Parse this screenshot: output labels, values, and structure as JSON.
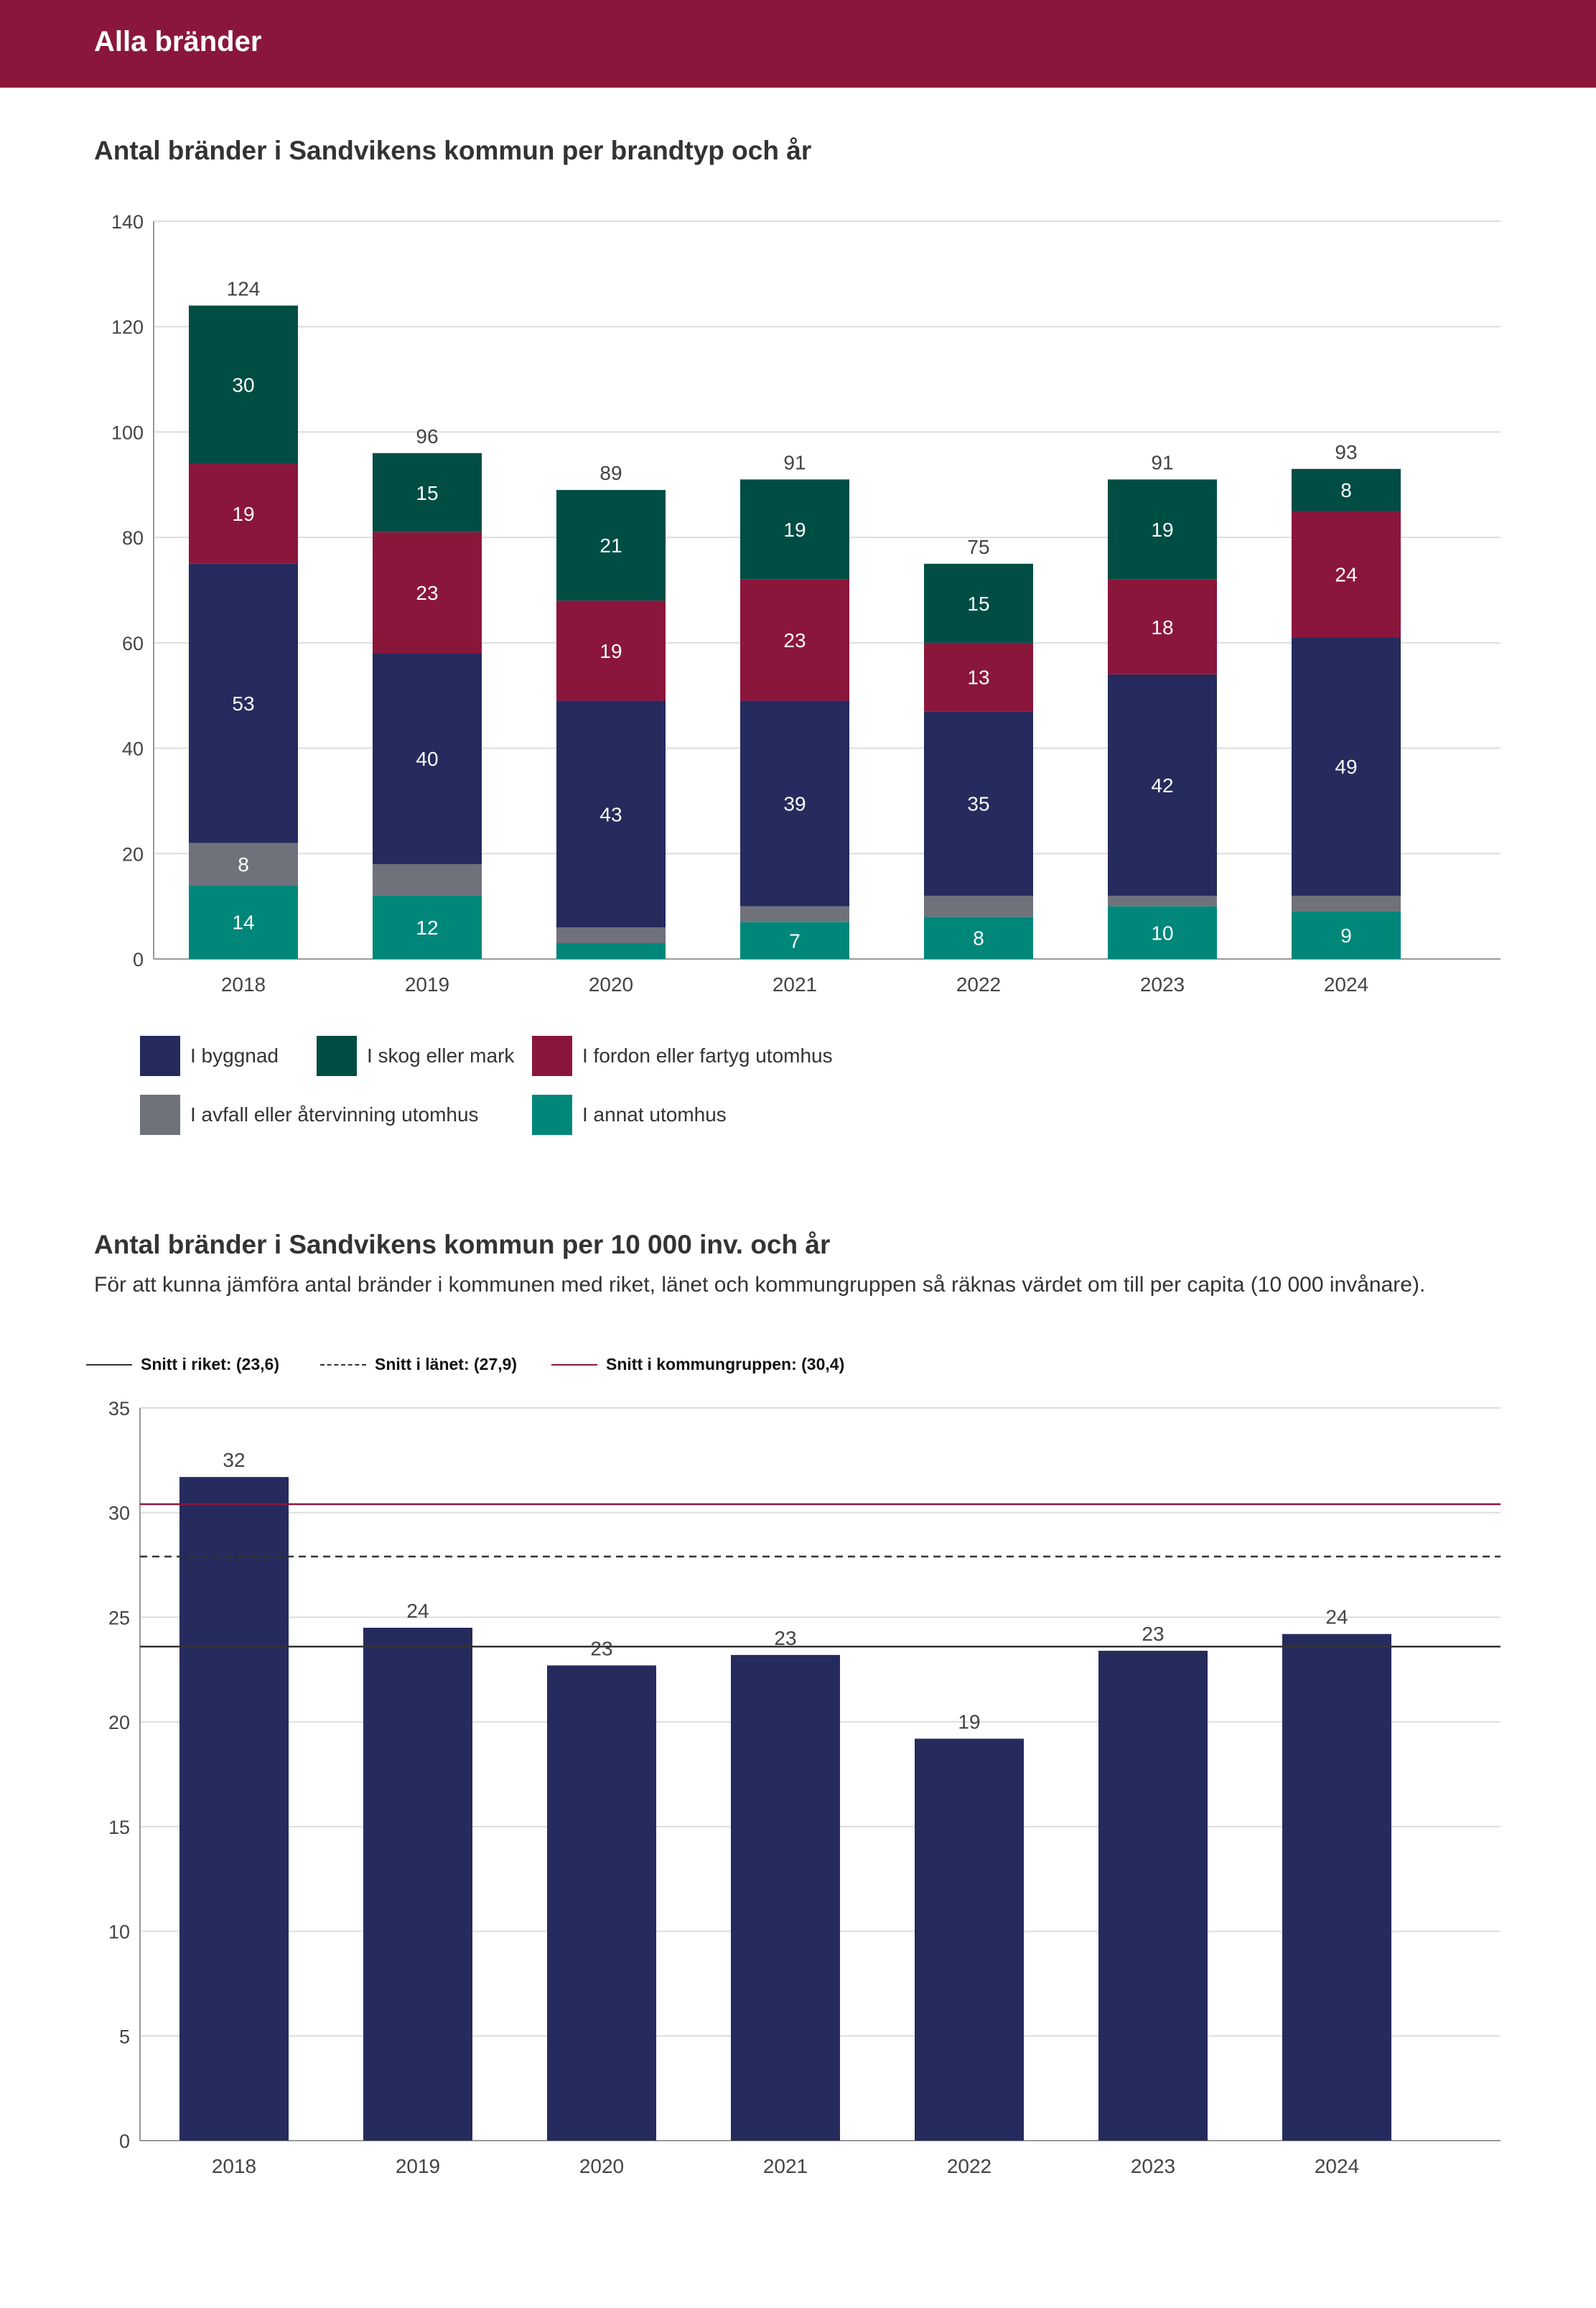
{
  "banner": {
    "title": "Alla bränder"
  },
  "chart1": {
    "title": "Antal bränder i Sandvikens kommun per brandtyp och år"
  },
  "chart2": {
    "title": "Antal bränder i Sandvikens kommun per 10 000 inv. och år",
    "subtitle": "För att kunna jämföra antal bränder i kommunen med riket, länet och kommungruppen så räknas värdet om till per capita (10 000 invånare)."
  },
  "chart_data": [
    {
      "type": "bar",
      "stacked": true,
      "title": "Antal bränder i Sandvikens kommun per brandtyp och år",
      "categories": [
        "2018",
        "2019",
        "2020",
        "2021",
        "2022",
        "2023",
        "2024"
      ],
      "ylim": [
        0,
        140
      ],
      "yticks": [
        "0",
        "20",
        "40",
        "60",
        "80",
        "100",
        "120",
        "140"
      ],
      "grid": true,
      "legend": "bottom",
      "series": [
        {
          "name": "I annat utomhus",
          "color": "#00877a",
          "values": [
            14,
            12,
            3,
            7,
            8,
            10,
            9
          ],
          "labels": [
            "14",
            "12",
            "",
            "7",
            "8",
            "10",
            "9"
          ]
        },
        {
          "name": "I avfall eller återvinning utomhus",
          "color": "#6f727b",
          "values": [
            8,
            6,
            3,
            3,
            4,
            2,
            3
          ],
          "labels": [
            "8",
            "",
            "",
            "",
            "",
            "",
            ""
          ]
        },
        {
          "name": "I byggnad",
          "color": "#252b5c",
          "values": [
            53,
            40,
            43,
            39,
            35,
            42,
            49
          ],
          "labels": [
            "53",
            "40",
            "43",
            "39",
            "35",
            "42",
            "49"
          ]
        },
        {
          "name": "I fordon eller fartyg utomhus",
          "color": "#8b163c",
          "values": [
            19,
            23,
            19,
            23,
            13,
            18,
            24
          ],
          "labels": [
            "19",
            "23",
            "19",
            "23",
            "13",
            "18",
            "24"
          ]
        },
        {
          "name": "I skog eller mark",
          "color": "#004d44",
          "values": [
            30,
            15,
            21,
            19,
            15,
            19,
            8
          ],
          "labels": [
            "30",
            "15",
            "21",
            "19",
            "15",
            "19",
            "8"
          ]
        }
      ],
      "totals": [
        "124",
        "96",
        "89",
        "91",
        "75",
        "91",
        "93"
      ],
      "legend_order": [
        "I byggnad",
        "I skog eller mark",
        "I fordon eller fartyg utomhus",
        "I avfall eller återvinning utomhus",
        "I annat utomhus"
      ]
    },
    {
      "type": "bar",
      "title": "Antal bränder i Sandvikens kommun per 10 000 inv. och år",
      "categories": [
        "2018",
        "2019",
        "2020",
        "2021",
        "2022",
        "2023",
        "2024"
      ],
      "values": [
        31.7,
        24.5,
        22.7,
        23.2,
        19.2,
        23.4,
        24.2
      ],
      "value_labels": [
        "32",
        "24",
        "23",
        "23",
        "19",
        "23",
        "24"
      ],
      "bar_color": "#252b5c",
      "ylim": [
        0,
        35
      ],
      "yticks": [
        "0",
        "5",
        "10",
        "15",
        "20",
        "25",
        "30",
        "35"
      ],
      "grid": true,
      "reference_lines": [
        {
          "label": "Snitt i riket: (23,6)",
          "value": 23.6,
          "style": "solid",
          "color": "#333333"
        },
        {
          "label": "Snitt i länet: (27,9)",
          "value": 27.9,
          "style": "dashed",
          "color": "#333333"
        },
        {
          "label": "Snitt i kommungruppen: (30,4)",
          "value": 30.4,
          "style": "solid",
          "color": "#8b163c"
        }
      ]
    }
  ]
}
